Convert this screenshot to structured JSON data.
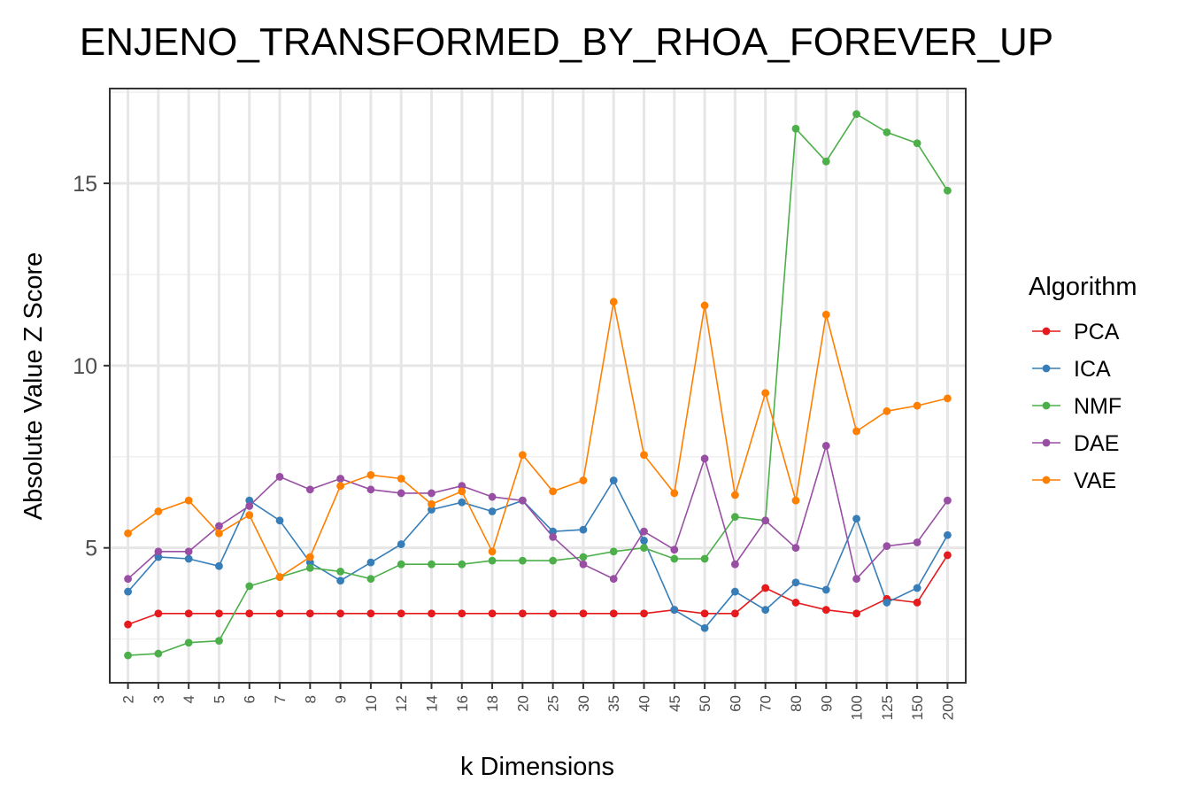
{
  "chart_data": {
    "type": "line",
    "title": "ENJENO_TRANSFORMED_BY_RHOA_FOREVER_UP",
    "xlabel": "k Dimensions",
    "ylabel": "Absolute Value Z Score",
    "categories": [
      "2",
      "3",
      "4",
      "5",
      "6",
      "7",
      "8",
      "9",
      "10",
      "12",
      "14",
      "16",
      "18",
      "20",
      "25",
      "30",
      "35",
      "40",
      "45",
      "50",
      "60",
      "70",
      "80",
      "90",
      "100",
      "125",
      "150",
      "200"
    ],
    "ylim": [
      1.3,
      17.6
    ],
    "yticks": [
      5,
      10,
      15
    ],
    "grid": true,
    "legend": {
      "title": "Algorithm",
      "position": "right"
    },
    "series": [
      {
        "name": "PCA",
        "color": "#E41A1C",
        "values": [
          2.9,
          3.2,
          3.2,
          3.2,
          3.2,
          3.2,
          3.2,
          3.2,
          3.2,
          3.2,
          3.2,
          3.2,
          3.2,
          3.2,
          3.2,
          3.2,
          3.2,
          3.2,
          3.3,
          3.2,
          3.2,
          3.9,
          3.5,
          3.3,
          3.2,
          3.6,
          3.5,
          4.8
        ]
      },
      {
        "name": "ICA",
        "color": "#377EB8",
        "values": [
          3.8,
          4.75,
          4.7,
          4.5,
          6.3,
          5.75,
          4.6,
          4.1,
          4.6,
          5.1,
          6.05,
          6.25,
          6.0,
          6.3,
          5.45,
          5.5,
          6.85,
          5.2,
          3.3,
          2.8,
          3.8,
          3.3,
          4.05,
          3.85,
          5.8,
          3.5,
          3.9,
          5.35
        ]
      },
      {
        "name": "NMF",
        "color": "#4DAF4A",
        "values": [
          2.05,
          2.1,
          2.4,
          2.45,
          3.95,
          4.2,
          4.45,
          4.35,
          4.15,
          4.55,
          4.55,
          4.55,
          4.65,
          4.65,
          4.65,
          4.75,
          4.9,
          5.0,
          4.7,
          4.7,
          5.85,
          5.75,
          16.5,
          15.6,
          16.9,
          16.4,
          16.1,
          14.8
        ]
      },
      {
        "name": "DAE",
        "color": "#984EA3",
        "values": [
          4.15,
          4.9,
          4.9,
          5.6,
          6.15,
          6.95,
          6.6,
          6.9,
          6.6,
          6.5,
          6.5,
          6.7,
          6.4,
          6.3,
          5.3,
          4.55,
          4.15,
          5.45,
          4.95,
          7.45,
          4.55,
          5.75,
          5.0,
          7.8,
          4.15,
          5.05,
          5.15,
          6.3
        ]
      },
      {
        "name": "VAE",
        "color": "#FF7F00",
        "values": [
          5.4,
          6.0,
          6.3,
          5.4,
          5.9,
          4.2,
          4.75,
          6.7,
          7.0,
          6.9,
          6.2,
          6.55,
          4.9,
          7.55,
          6.55,
          6.85,
          11.75,
          7.55,
          6.5,
          11.65,
          6.45,
          9.25,
          6.3,
          11.4,
          8.2,
          8.75,
          8.9,
          9.1
        ]
      }
    ]
  }
}
